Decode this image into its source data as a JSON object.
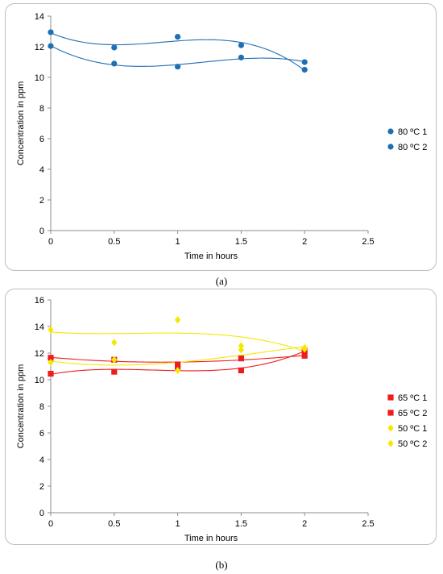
{
  "captions": {
    "a": "(a)",
    "b": "(b)"
  },
  "chart_data": [
    {
      "type": "scatter",
      "xlabel": "Time in hours",
      "ylabel": "Concentration in ppm",
      "xlim": [
        0,
        2.5
      ],
      "ylim": [
        0,
        14
      ],
      "xticks": [
        0,
        0.5,
        1,
        1.5,
        2,
        2.5
      ],
      "yticks": [
        0,
        2,
        4,
        6,
        8,
        10,
        12,
        14
      ],
      "grid": false,
      "legend_position": "right",
      "trendline": "polynomial",
      "x": [
        0,
        0.5,
        1,
        1.5,
        2
      ],
      "series": [
        {
          "name": "80 ºC 1",
          "color": "#1f6fb5",
          "marker": "circle",
          "values": [
            12.95,
            11.95,
            12.65,
            12.1,
            10.5
          ]
        },
        {
          "name": "80 ºC 2",
          "color": "#1f6fb5",
          "marker": "circle",
          "values": [
            12.05,
            10.9,
            10.7,
            11.3,
            11.0
          ]
        }
      ]
    },
    {
      "type": "scatter",
      "xlabel": "Time in hours",
      "ylabel": "Concentration in ppm",
      "xlim": [
        0,
        2.5
      ],
      "ylim": [
        0,
        16
      ],
      "xticks": [
        0,
        0.5,
        1,
        1.5,
        2,
        2.5
      ],
      "yticks": [
        0,
        2,
        4,
        6,
        8,
        10,
        12,
        14,
        16
      ],
      "grid": false,
      "legend_position": "right",
      "trendline": "polynomial",
      "x": [
        0,
        0.5,
        1,
        1.5,
        2
      ],
      "series": [
        {
          "name": "65 ºC 1",
          "color": "#ee1c1c",
          "marker": "square",
          "values": [
            11.65,
            11.5,
            11.15,
            11.6,
            11.8
          ]
        },
        {
          "name": "65 ºC 2",
          "color": "#ee1c1c",
          "marker": "square",
          "values": [
            10.45,
            10.6,
            10.95,
            10.7,
            12.2
          ]
        },
        {
          "name": "50 ºC 1",
          "color": "#f5e700",
          "marker": "diamond",
          "values": [
            13.75,
            12.8,
            14.5,
            12.55,
            12.3
          ]
        },
        {
          "name": "50 ºC 2",
          "color": "#f5e700",
          "marker": "diamond",
          "values": [
            11.3,
            11.5,
            10.7,
            12.25,
            12.4
          ]
        }
      ]
    }
  ]
}
